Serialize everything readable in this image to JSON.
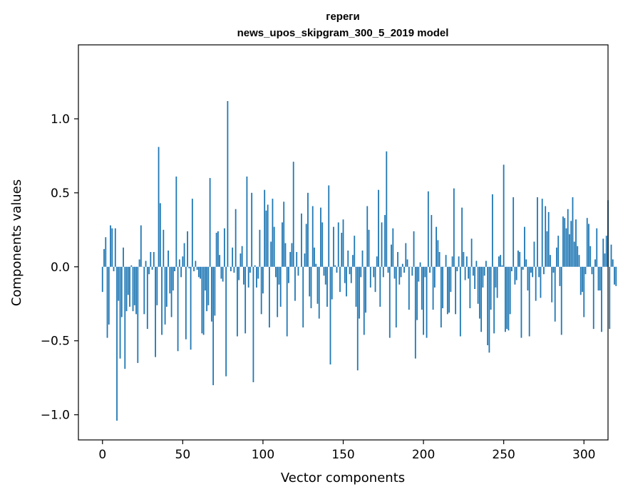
{
  "chart_data": {
    "type": "bar",
    "title": "гереги",
    "subtitle": "news_upos_skipgram_300_5_2019 model",
    "xlabel": "Vector components",
    "ylabel": "Components values",
    "xlim": [
      -15,
      315
    ],
    "ylim": [
      -1.17,
      1.5
    ],
    "x_ticks": [
      0,
      50,
      100,
      150,
      200,
      250,
      300
    ],
    "x_tick_labels": [
      "0",
      "50",
      "100",
      "150",
      "200",
      "250",
      "300"
    ],
    "y_ticks": [
      -1.0,
      -0.5,
      0.0,
      0.5,
      1.0
    ],
    "y_tick_labels": [
      "−1.0",
      "−0.5",
      "0.0",
      "0.5",
      "1.0"
    ],
    "grid": false,
    "bar_color": "#1f77b4",
    "values": [
      -0.17,
      0.12,
      0.2,
      -0.48,
      -0.39,
      0.28,
      0.26,
      -0.03,
      0.26,
      -1.04,
      -0.23,
      -0.62,
      -0.34,
      0.13,
      -0.69,
      -0.3,
      -0.19,
      -0.27,
      0.01,
      -0.3,
      -0.26,
      -0.32,
      -0.65,
      0.05,
      0.28,
      0.0,
      -0.32,
      0.04,
      -0.42,
      -0.05,
      0.1,
      -0.02,
      0.1,
      -0.61,
      -0.26,
      0.81,
      0.43,
      -0.46,
      0.25,
      -0.39,
      -0.27,
      0.11,
      -0.18,
      -0.34,
      -0.16,
      -0.03,
      0.61,
      -0.57,
      0.05,
      -0.07,
      0.07,
      0.16,
      -0.49,
      0.24,
      -0.01,
      -0.56,
      0.46,
      -0.03,
      0.04,
      -0.02,
      -0.07,
      -0.08,
      -0.45,
      -0.46,
      -0.16,
      -0.3,
      -0.26,
      0.6,
      -0.37,
      -0.8,
      -0.33,
      0.23,
      0.24,
      0.08,
      -0.08,
      -0.1,
      0.26,
      -0.74,
      1.12,
      0.0,
      -0.03,
      0.13,
      -0.04,
      0.39,
      -0.47,
      -0.09,
      0.09,
      0.14,
      -0.12,
      -0.45,
      0.61,
      -0.14,
      -0.04,
      0.5,
      -0.78,
      0.01,
      -0.14,
      -0.08,
      0.25,
      -0.32,
      -0.18,
      0.52,
      0.38,
      0.42,
      -0.41,
      0.17,
      0.46,
      0.27,
      -0.07,
      -0.34,
      -0.12,
      -0.27,
      0.3,
      0.44,
      0.16,
      -0.47,
      -0.11,
      0.1,
      0.16,
      0.71,
      -0.23,
      0.1,
      -0.06,
      0.0,
      0.36,
      -0.41,
      0.09,
      0.29,
      0.5,
      -0.2,
      -0.28,
      0.41,
      0.13,
      0.02,
      -0.25,
      -0.35,
      0.4,
      0.3,
      -0.06,
      -0.12,
      -0.27,
      0.55,
      -0.66,
      -0.22,
      0.27,
      0.01,
      -0.04,
      0.3,
      -0.17,
      0.23,
      0.32,
      -0.11,
      -0.2,
      0.11,
      -0.05,
      -0.11,
      0.08,
      0.21,
      -0.27,
      -0.7,
      -0.35,
      -0.07,
      0.11,
      -0.46,
      -0.31,
      0.41,
      0.25,
      -0.14,
      0.0,
      -0.07,
      -0.17,
      0.07,
      0.52,
      -0.27,
      0.3,
      -0.07,
      0.35,
      0.78,
      -0.04,
      -0.48,
      0.15,
      0.26,
      -0.08,
      -0.41,
      0.1,
      -0.12,
      -0.07,
      0.02,
      -0.04,
      0.16,
      0.05,
      -0.29,
      0.0,
      -0.06,
      0.24,
      -0.62,
      -0.36,
      -0.1,
      0.03,
      -0.29,
      -0.46,
      -0.07,
      -0.48,
      0.51,
      -0.04,
      0.35,
      -0.29,
      -0.14,
      0.27,
      0.18,
      0.1,
      -0.41,
      -0.28,
      0.0,
      0.08,
      -0.32,
      -0.31,
      -0.17,
      0.07,
      0.53,
      -0.32,
      -0.03,
      0.07,
      -0.47,
      0.4,
      0.1,
      -0.09,
      0.07,
      -0.08,
      -0.28,
      0.19,
      -0.06,
      -0.15,
      0.04,
      -0.25,
      -0.35,
      -0.44,
      -0.14,
      -0.06,
      0.04,
      -0.53,
      -0.58,
      -0.29,
      0.49,
      -0.45,
      -0.14,
      -0.21,
      0.07,
      0.08,
      0.01,
      0.69,
      -0.44,
      -0.42,
      -0.43,
      -0.32,
      -0.03,
      0.47,
      -0.12,
      -0.09,
      0.11,
      0.1,
      -0.48,
      -0.02,
      0.27,
      0.05,
      -0.16,
      -0.47,
      -0.04,
      -0.07,
      0.17,
      -0.23,
      0.47,
      -0.07,
      -0.21,
      0.46,
      -0.05,
      0.41,
      0.24,
      0.37,
      0.08,
      -0.24,
      -0.04,
      -0.37,
      0.13,
      0.21,
      -0.13,
      -0.46,
      0.34,
      0.33,
      0.26,
      0.39,
      0.22,
      0.31,
      0.47,
      0.17,
      0.32,
      0.14,
      0.08,
      -0.19,
      -0.17,
      -0.34,
      -0.05,
      0.33,
      0.29,
      0.14,
      -0.05,
      -0.42,
      0.05,
      0.26,
      -0.16,
      -0.16,
      -0.44,
      0.19,
      0.09,
      0.21,
      0.45,
      -0.42,
      0.15,
      0.05,
      -0.12,
      -0.13
    ]
  }
}
